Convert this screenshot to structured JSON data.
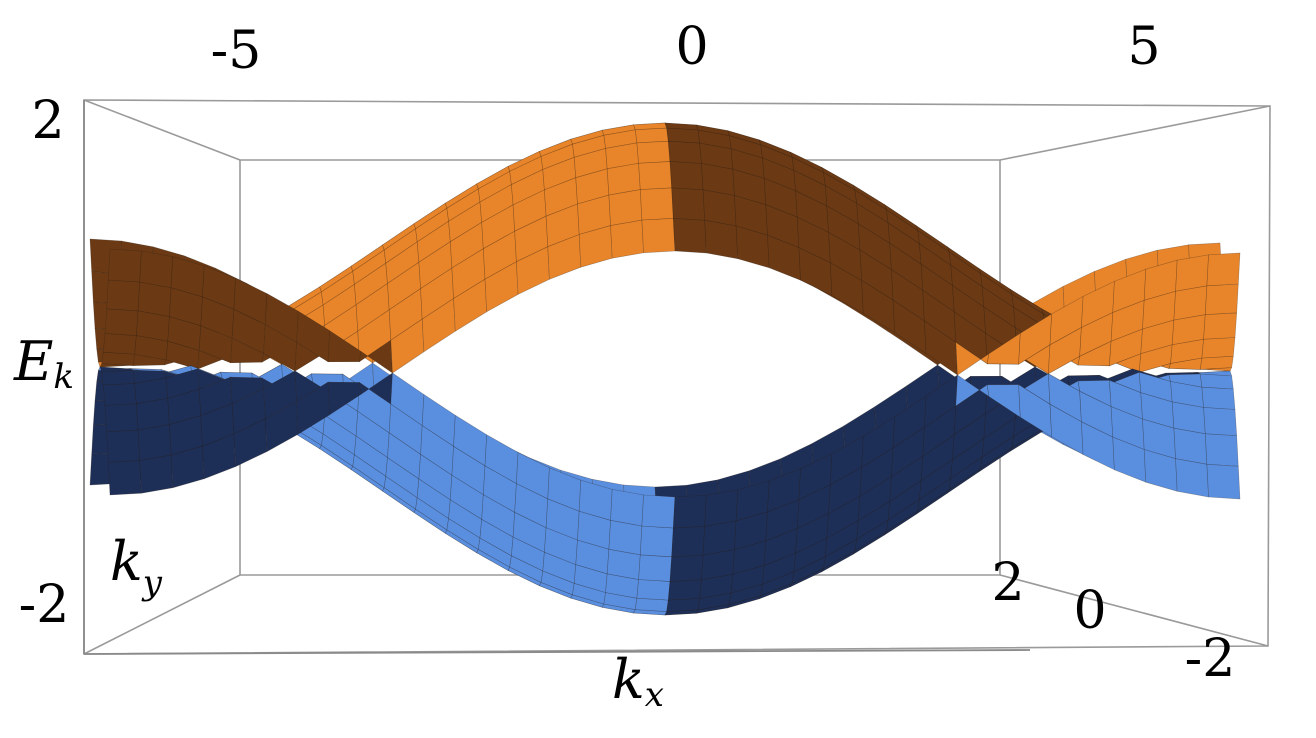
{
  "chart_data": {
    "type": "surface3d",
    "function": "E(kx,ky) = ±(√3/2)·|cos(kx/2) ± cos(ky/2)|",
    "x_axis": {
      "label": "k",
      "label_sub": "x",
      "ticks": [
        "-5",
        "0",
        "5"
      ],
      "range": [
        -6.283,
        6.283
      ]
    },
    "y_axis": {
      "label": "k",
      "label_sub": "y",
      "ticks": [
        "2",
        "0",
        "-2"
      ],
      "range": [
        -3.1416,
        3.1416
      ]
    },
    "z_axis": {
      "label": "E",
      "label_sub": "k",
      "ticks": [
        "2",
        "-2"
      ],
      "range": [
        -2.2,
        2.2
      ]
    },
    "series": [
      {
        "band": "upper",
        "sign": 1,
        "color": "#e8852a",
        "shade": "#6b3a14"
      },
      {
        "band": "lower",
        "sign": -1,
        "color": "#5a8fe0",
        "shade": "#1e2f57"
      }
    ],
    "sample_points": [
      {
        "kx": 0,
        "ky": 0,
        "E_upper": 1.73,
        "E_lower": -1.73
      },
      {
        "kx": 3.1416,
        "ky": 3.1416,
        "E_upper": 0.0,
        "E_lower": 0.0
      },
      {
        "kx": 6.283,
        "ky": 0,
        "E_upper": 1.73,
        "E_lower": -1.73
      },
      {
        "kx": 0,
        "ky": 3.1416,
        "E_upper": 0.87,
        "E_lower": -0.87
      }
    ],
    "mesh": true,
    "box": true
  }
}
